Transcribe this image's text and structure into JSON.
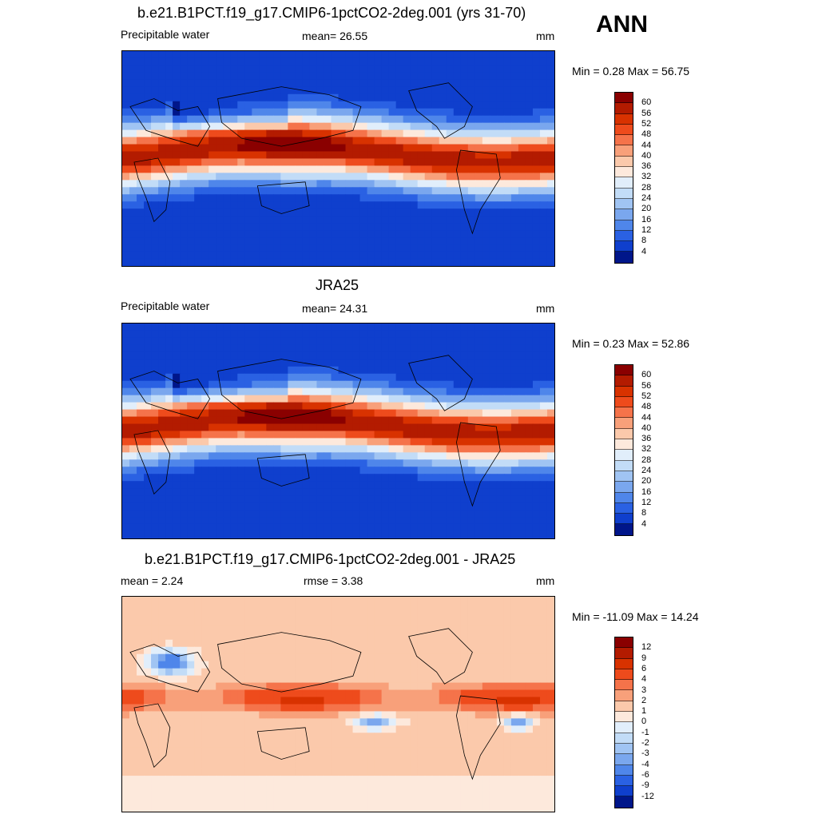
{
  "season": "ANN",
  "panels": [
    {
      "title": "b.e21.B1PCT.f19_g17.CMIP6-1pctCO2-2deg.001 (yrs 31-70)",
      "left_label": "Precipitable water",
      "center_label": "mean=  26.55",
      "units": "mm",
      "minmax": "Min =   0.28 Max =  56.75",
      "colorbar": {
        "ticks": [
          "60",
          "56",
          "52",
          "48",
          "44",
          "40",
          "36",
          "32",
          "28",
          "24",
          "20",
          "16",
          "12",
          "8",
          "4"
        ],
        "colors": [
          "#8a0000",
          "#b31b00",
          "#d83200",
          "#ee4b1c",
          "#f5734a",
          "#f8a07a",
          "#fbc9ab",
          "#fde9dc",
          "#e1eefb",
          "#c2dcf7",
          "#a0c4f3",
          "#7aa7ee",
          "#4f86ea",
          "#2a61e3",
          "#0f3fcd",
          "#00168a"
        ]
      },
      "map": {
        "kind": "abs",
        "mean": 26.55
      }
    },
    {
      "title": "JRA25",
      "left_label": "Precipitable water",
      "center_label": "mean=  24.31",
      "units": "mm",
      "minmax": "Min =   0.23 Max =  52.86",
      "colorbar": {
        "ticks": [
          "60",
          "56",
          "52",
          "48",
          "44",
          "40",
          "36",
          "32",
          "28",
          "24",
          "20",
          "16",
          "12",
          "8",
          "4"
        ],
        "colors": [
          "#8a0000",
          "#b31b00",
          "#d83200",
          "#ee4b1c",
          "#f5734a",
          "#f8a07a",
          "#fbc9ab",
          "#fde9dc",
          "#e1eefb",
          "#c2dcf7",
          "#a0c4f3",
          "#7aa7ee",
          "#4f86ea",
          "#2a61e3",
          "#0f3fcd",
          "#00168a"
        ]
      },
      "map": {
        "kind": "abs",
        "mean": 24.31
      }
    },
    {
      "title": "b.e21.B1PCT.f19_g17.CMIP6-1pctCO2-2deg.001 - JRA25",
      "left_label": "mean =   2.24",
      "center_label": "rmse =   3.38",
      "units": "mm",
      "minmax": "Min = -11.09 Max =  14.24",
      "colorbar": {
        "ticks": [
          "12",
          "9",
          "6",
          "4",
          "3",
          "2",
          "1",
          "0",
          "-1",
          "-2",
          "-3",
          "-4",
          "-6",
          "-9",
          "-12"
        ],
        "colors": [
          "#8a0000",
          "#b31b00",
          "#d83200",
          "#ee4b1c",
          "#f5734a",
          "#f8a07a",
          "#fbc9ab",
          "#fde9dc",
          "#e1eefb",
          "#c2dcf7",
          "#a0c4f3",
          "#7aa7ee",
          "#4f86ea",
          "#2a61e3",
          "#0f3fcd",
          "#00168a"
        ]
      },
      "map": {
        "kind": "diff",
        "mean": 2.24
      }
    }
  ]
}
